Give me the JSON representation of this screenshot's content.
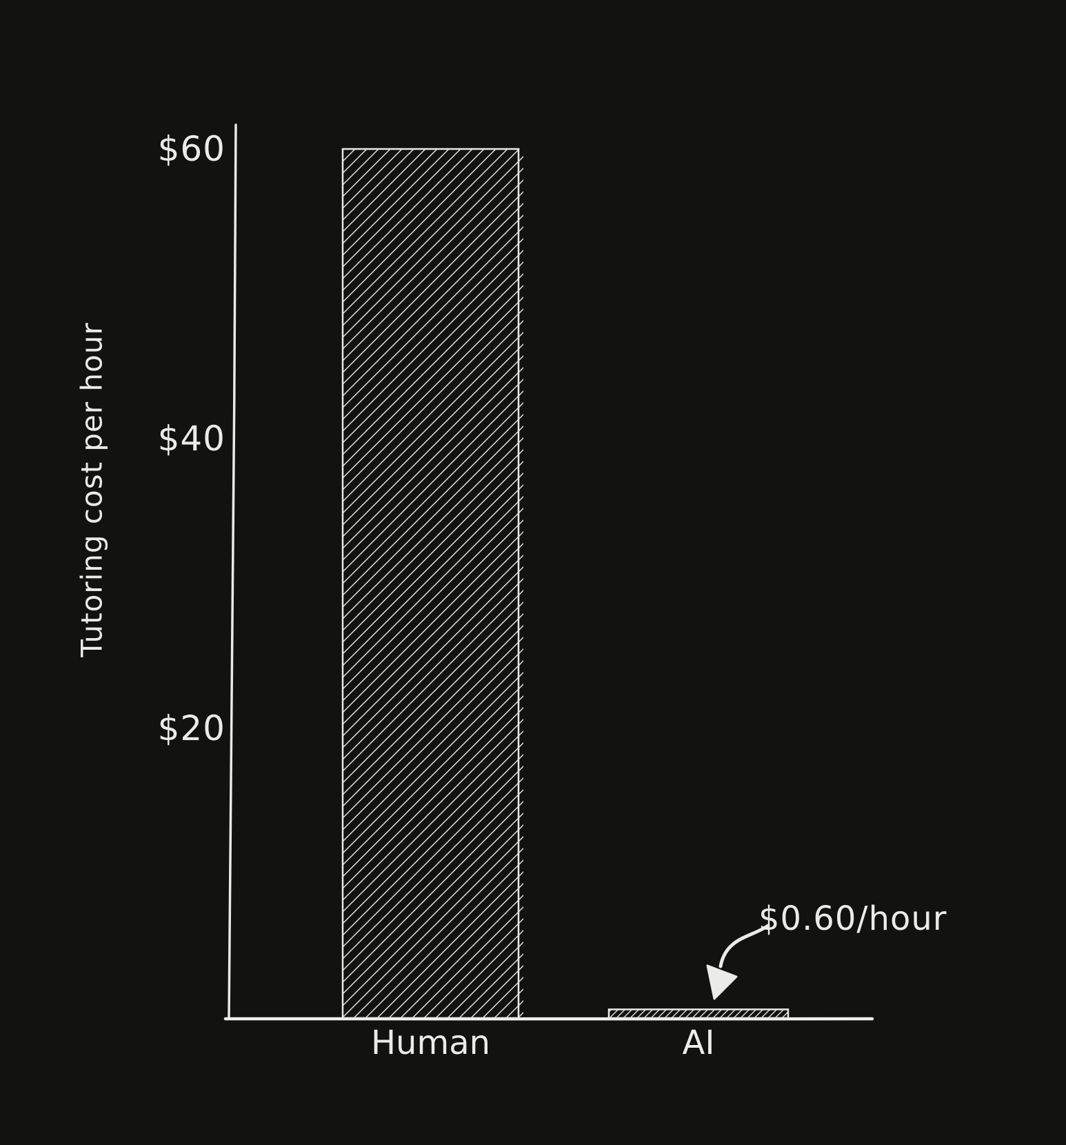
{
  "chart_data": {
    "type": "bar",
    "title": "",
    "categories": [
      "Human",
      "AI"
    ],
    "values": [
      60,
      0.6
    ],
    "xlabel": "",
    "ylabel": "Tutoring cost per hour",
    "ylim": [
      0,
      62
    ],
    "yticks": [
      {
        "value": 60,
        "label": "$60"
      },
      {
        "value": 40,
        "label": "$40"
      },
      {
        "value": 20,
        "label": "$20"
      }
    ],
    "grid": false,
    "legend": false,
    "bar_fill_style": "diagonal-hatch",
    "annotation": {
      "text": "$0.60/hour",
      "target_category": "AI"
    }
  },
  "colors": {
    "background": "#121211",
    "ink": "#ebebe8"
  }
}
